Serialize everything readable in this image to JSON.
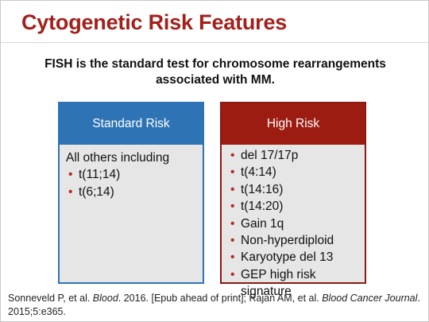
{
  "slide": {
    "title": "Cytogenetic Risk Features",
    "subtitle": "FISH is the standard test for chromosome rearrangements associated with MM.",
    "colors": {
      "title": "#a31f1a",
      "standard": "#2e74b5",
      "high": "#9c1c12",
      "bullet": "#b22a1f"
    }
  },
  "standard": {
    "header": "Standard Risk",
    "intro": "All others including",
    "items": [
      "t(11;14)",
      "t(6;14)"
    ]
  },
  "high": {
    "header": "High Risk",
    "items": [
      "del 17/17p",
      "t(4:14)",
      "t(14:16)",
      "t(14:20)",
      "Gain 1q",
      "Non-hyperdiploid",
      "Karyotype del 13",
      "GEP high risk signature"
    ]
  },
  "citation": {
    "part1": "Sonneveld P, et al. ",
    "journal1": "Blood",
    "part2": ". 2016. [Epub ahead of print]; Rajan AM, et al. ",
    "journal2": "Blood Cancer Journal",
    "part3": ". 2015;5:e365."
  },
  "bullet_glyph": "•"
}
